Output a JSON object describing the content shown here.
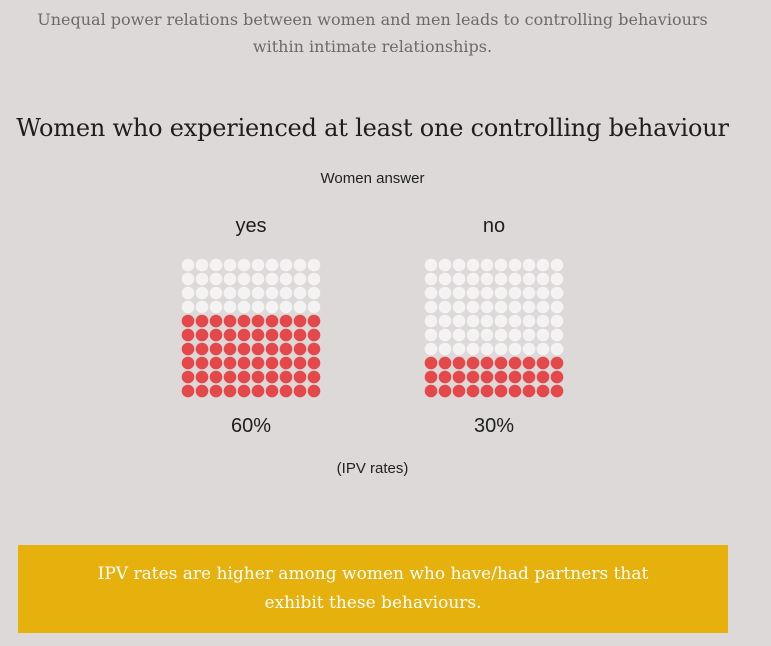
{
  "header": {
    "subtitle_line1": "Unequal power relations between women and men leads to controlling behaviours",
    "subtitle_line2": "within intimate relationships."
  },
  "chart_data": {
    "type": "waffle",
    "title": "Women who experienced at least one controlling behaviour",
    "group_label": "Women answer",
    "categories": [
      "yes",
      "no"
    ],
    "values": [
      60,
      30
    ],
    "value_labels": [
      "60%",
      "30%"
    ],
    "units_per_chart": 100,
    "note": "(IPV rates)",
    "colors": {
      "filled": "#e5484a",
      "empty": "#f4f2f2"
    }
  },
  "callout": {
    "line1": "IPV rates are higher among women who have/had partners that",
    "line2": "exhibit these behaviours.",
    "color": "#e6b10d"
  }
}
